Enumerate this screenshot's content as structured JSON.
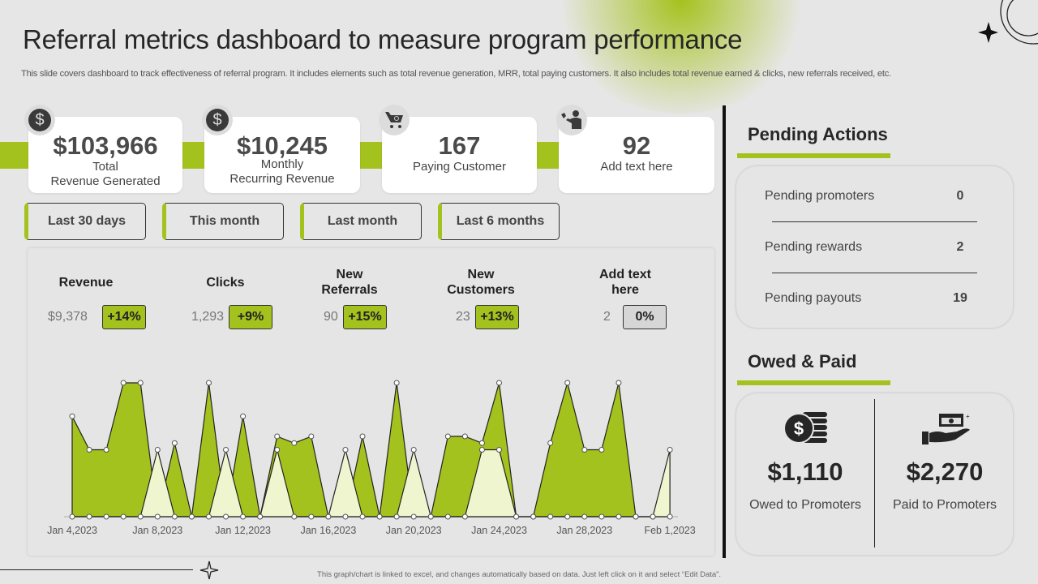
{
  "header": {
    "title": "Referral metrics dashboard to measure program performance",
    "subtitle": "This slide covers dashboard to track effectiveness of referral program. It includes elements such as total revenue generation, MRR, total paying customers. It also includes total revenue earned & clicks, new referrals received, etc."
  },
  "kpis": [
    {
      "value": "$103,966",
      "label1": "Total",
      "label2": "Revenue Generated",
      "icon": "dollar-icon"
    },
    {
      "value": "$10,245",
      "label1": "Monthly",
      "label2": "Recurring Revenue",
      "icon": "dollar-icon"
    },
    {
      "value": "167",
      "label1": "Paying Customer",
      "icon": "shopping-cart-icon"
    },
    {
      "value": "92",
      "label1": "Add text here",
      "icon": "referral-person-icon"
    }
  ],
  "filters": [
    "Last 30 days",
    "This month",
    "Last month",
    "Last 6 months"
  ],
  "metrics": [
    {
      "title1": "Revenue",
      "title2": "",
      "value": "$9,378",
      "change": "+14%"
    },
    {
      "title1": "Clicks",
      "title2": "",
      "value": "1,293",
      "change": "+9%"
    },
    {
      "title1": "New",
      "title2": "Referrals",
      "value": "90",
      "change": "+15%"
    },
    {
      "title1": "New",
      "title2": "Customers",
      "value": "23",
      "change": "+13%"
    },
    {
      "title1": "Add text",
      "title2": "here",
      "value": "2",
      "change": "0%"
    }
  ],
  "chart_data": {
    "type": "area",
    "x_tick_labels": [
      "Jan 4,2023",
      "Jan 8,2023",
      "Jan 12,2023",
      "Jan 16,2023",
      "Jan 20,2023",
      "Jan 24,2023",
      "Jan 28,2023",
      "Feb 1,2023"
    ],
    "ylim": [
      0,
      20
    ],
    "grid": false,
    "series": [
      {
        "color": "#a4c21d",
        "values": [
          15,
          10,
          10,
          20,
          20,
          0,
          11,
          0,
          20,
          0,
          15,
          0,
          12,
          11,
          12,
          0,
          0,
          12,
          0,
          20,
          0,
          0,
          12,
          12,
          11,
          20,
          0,
          0,
          11,
          20,
          10,
          10,
          20,
          0,
          0,
          0
        ]
      },
      {
        "color": "#eef5cf",
        "values": [
          0,
          0,
          0,
          0,
          0,
          10,
          0,
          0,
          0,
          10,
          0,
          0,
          10,
          0,
          0,
          0,
          10,
          0,
          0,
          0,
          10,
          0,
          0,
          0,
          10,
          10,
          0,
          0,
          0,
          0,
          0,
          0,
          0,
          0,
          0,
          10
        ]
      }
    ]
  },
  "pending": {
    "title": "Pending Actions",
    "rows": [
      {
        "label": "Pending promoters",
        "value": "0"
      },
      {
        "label": "Pending rewards",
        "value": "2"
      },
      {
        "label": "Pending payouts",
        "value": "19"
      }
    ]
  },
  "owed": {
    "title": "Owed & Paid",
    "items": [
      {
        "value": "$1,110",
        "label": "Owed to Promoters",
        "icon": "coins-icon"
      },
      {
        "value": "$2,270",
        "label": "Paid to Promoters",
        "icon": "cash-in-hand-icon"
      }
    ]
  },
  "footer": "This graph/chart is linked to excel, and changes automatically based on data. Just left click on it and select “Edit Data”.",
  "colors": {
    "accent": "#a4c21d",
    "background": "#e7e6e6"
  }
}
